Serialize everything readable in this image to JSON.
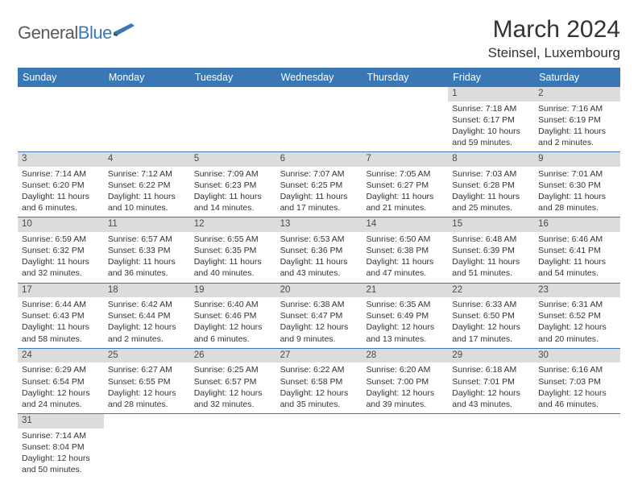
{
  "logo": {
    "text1": "General",
    "text2": "Blue"
  },
  "title": "March 2024",
  "location": "Steinsel, Luxembourg",
  "colors": {
    "header_bg": "#3a77b5",
    "header_text": "#ffffff",
    "daynum_bg": "#dcdcdc",
    "daynum_text": "#4a4a4a",
    "body_text": "#333333",
    "row_border": "#3a77b5"
  },
  "weekdays": [
    "Sunday",
    "Monday",
    "Tuesday",
    "Wednesday",
    "Thursday",
    "Friday",
    "Saturday"
  ],
  "weeks": [
    [
      null,
      null,
      null,
      null,
      null,
      {
        "n": "1",
        "sunrise": "Sunrise: 7:18 AM",
        "sunset": "Sunset: 6:17 PM",
        "daylight": "Daylight: 10 hours and 59 minutes."
      },
      {
        "n": "2",
        "sunrise": "Sunrise: 7:16 AM",
        "sunset": "Sunset: 6:19 PM",
        "daylight": "Daylight: 11 hours and 2 minutes."
      }
    ],
    [
      {
        "n": "3",
        "sunrise": "Sunrise: 7:14 AM",
        "sunset": "Sunset: 6:20 PM",
        "daylight": "Daylight: 11 hours and 6 minutes."
      },
      {
        "n": "4",
        "sunrise": "Sunrise: 7:12 AM",
        "sunset": "Sunset: 6:22 PM",
        "daylight": "Daylight: 11 hours and 10 minutes."
      },
      {
        "n": "5",
        "sunrise": "Sunrise: 7:09 AM",
        "sunset": "Sunset: 6:23 PM",
        "daylight": "Daylight: 11 hours and 14 minutes."
      },
      {
        "n": "6",
        "sunrise": "Sunrise: 7:07 AM",
        "sunset": "Sunset: 6:25 PM",
        "daylight": "Daylight: 11 hours and 17 minutes."
      },
      {
        "n": "7",
        "sunrise": "Sunrise: 7:05 AM",
        "sunset": "Sunset: 6:27 PM",
        "daylight": "Daylight: 11 hours and 21 minutes."
      },
      {
        "n": "8",
        "sunrise": "Sunrise: 7:03 AM",
        "sunset": "Sunset: 6:28 PM",
        "daylight": "Daylight: 11 hours and 25 minutes."
      },
      {
        "n": "9",
        "sunrise": "Sunrise: 7:01 AM",
        "sunset": "Sunset: 6:30 PM",
        "daylight": "Daylight: 11 hours and 28 minutes."
      }
    ],
    [
      {
        "n": "10",
        "sunrise": "Sunrise: 6:59 AM",
        "sunset": "Sunset: 6:32 PM",
        "daylight": "Daylight: 11 hours and 32 minutes."
      },
      {
        "n": "11",
        "sunrise": "Sunrise: 6:57 AM",
        "sunset": "Sunset: 6:33 PM",
        "daylight": "Daylight: 11 hours and 36 minutes."
      },
      {
        "n": "12",
        "sunrise": "Sunrise: 6:55 AM",
        "sunset": "Sunset: 6:35 PM",
        "daylight": "Daylight: 11 hours and 40 minutes."
      },
      {
        "n": "13",
        "sunrise": "Sunrise: 6:53 AM",
        "sunset": "Sunset: 6:36 PM",
        "daylight": "Daylight: 11 hours and 43 minutes."
      },
      {
        "n": "14",
        "sunrise": "Sunrise: 6:50 AM",
        "sunset": "Sunset: 6:38 PM",
        "daylight": "Daylight: 11 hours and 47 minutes."
      },
      {
        "n": "15",
        "sunrise": "Sunrise: 6:48 AM",
        "sunset": "Sunset: 6:39 PM",
        "daylight": "Daylight: 11 hours and 51 minutes."
      },
      {
        "n": "16",
        "sunrise": "Sunrise: 6:46 AM",
        "sunset": "Sunset: 6:41 PM",
        "daylight": "Daylight: 11 hours and 54 minutes."
      }
    ],
    [
      {
        "n": "17",
        "sunrise": "Sunrise: 6:44 AM",
        "sunset": "Sunset: 6:43 PM",
        "daylight": "Daylight: 11 hours and 58 minutes."
      },
      {
        "n": "18",
        "sunrise": "Sunrise: 6:42 AM",
        "sunset": "Sunset: 6:44 PM",
        "daylight": "Daylight: 12 hours and 2 minutes."
      },
      {
        "n": "19",
        "sunrise": "Sunrise: 6:40 AM",
        "sunset": "Sunset: 6:46 PM",
        "daylight": "Daylight: 12 hours and 6 minutes."
      },
      {
        "n": "20",
        "sunrise": "Sunrise: 6:38 AM",
        "sunset": "Sunset: 6:47 PM",
        "daylight": "Daylight: 12 hours and 9 minutes."
      },
      {
        "n": "21",
        "sunrise": "Sunrise: 6:35 AM",
        "sunset": "Sunset: 6:49 PM",
        "daylight": "Daylight: 12 hours and 13 minutes."
      },
      {
        "n": "22",
        "sunrise": "Sunrise: 6:33 AM",
        "sunset": "Sunset: 6:50 PM",
        "daylight": "Daylight: 12 hours and 17 minutes."
      },
      {
        "n": "23",
        "sunrise": "Sunrise: 6:31 AM",
        "sunset": "Sunset: 6:52 PM",
        "daylight": "Daylight: 12 hours and 20 minutes."
      }
    ],
    [
      {
        "n": "24",
        "sunrise": "Sunrise: 6:29 AM",
        "sunset": "Sunset: 6:54 PM",
        "daylight": "Daylight: 12 hours and 24 minutes."
      },
      {
        "n": "25",
        "sunrise": "Sunrise: 6:27 AM",
        "sunset": "Sunset: 6:55 PM",
        "daylight": "Daylight: 12 hours and 28 minutes."
      },
      {
        "n": "26",
        "sunrise": "Sunrise: 6:25 AM",
        "sunset": "Sunset: 6:57 PM",
        "daylight": "Daylight: 12 hours and 32 minutes."
      },
      {
        "n": "27",
        "sunrise": "Sunrise: 6:22 AM",
        "sunset": "Sunset: 6:58 PM",
        "daylight": "Daylight: 12 hours and 35 minutes."
      },
      {
        "n": "28",
        "sunrise": "Sunrise: 6:20 AM",
        "sunset": "Sunset: 7:00 PM",
        "daylight": "Daylight: 12 hours and 39 minutes."
      },
      {
        "n": "29",
        "sunrise": "Sunrise: 6:18 AM",
        "sunset": "Sunset: 7:01 PM",
        "daylight": "Daylight: 12 hours and 43 minutes."
      },
      {
        "n": "30",
        "sunrise": "Sunrise: 6:16 AM",
        "sunset": "Sunset: 7:03 PM",
        "daylight": "Daylight: 12 hours and 46 minutes."
      }
    ],
    [
      {
        "n": "31",
        "sunrise": "Sunrise: 7:14 AM",
        "sunset": "Sunset: 8:04 PM",
        "daylight": "Daylight: 12 hours and 50 minutes."
      },
      null,
      null,
      null,
      null,
      null,
      null
    ]
  ]
}
